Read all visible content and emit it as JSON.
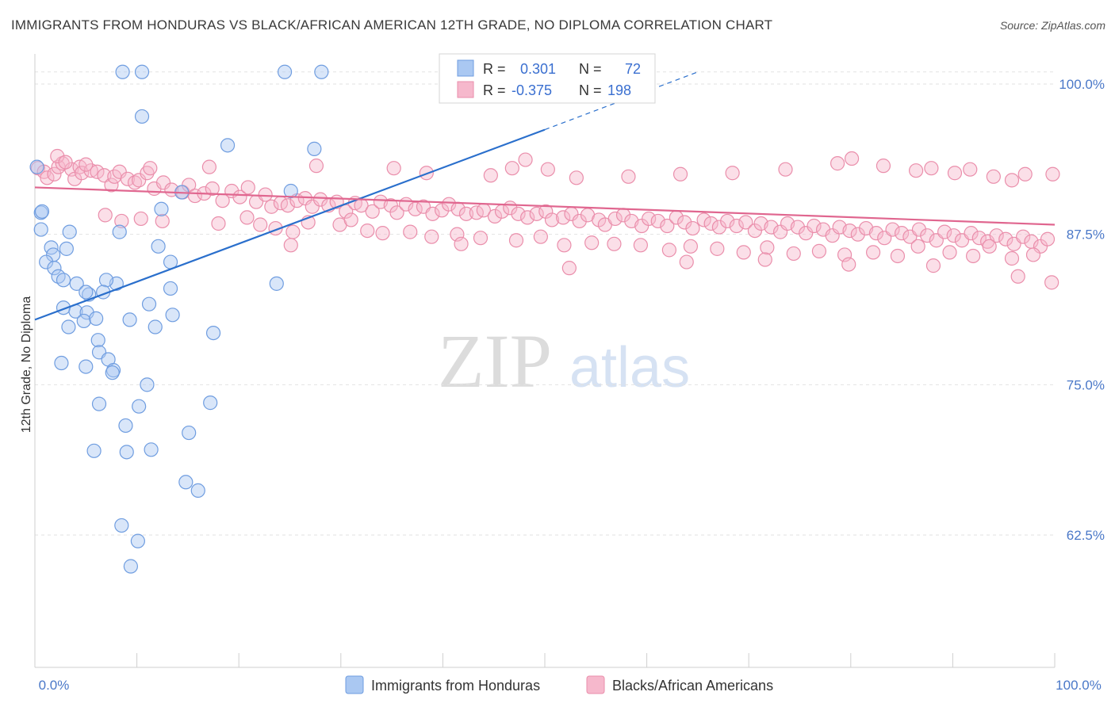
{
  "header": {
    "title": "IMMIGRANTS FROM HONDURAS VS BLACK/AFRICAN AMERICAN 12TH GRADE, NO DIPLOMA CORRELATION CHART",
    "source": "Source: ZipAtlas.com"
  },
  "watermark": {
    "zip": "ZIP",
    "atlas": "atlas"
  },
  "stats": [
    {
      "r_label": "R =",
      "r_value": "0.301",
      "n_label": "N =",
      "n_value": "72"
    },
    {
      "r_label": "R =",
      "r_value": "-0.375",
      "n_label": "N =",
      "n_value": "198"
    }
  ],
  "chart_data": {
    "type": "scatter",
    "ylabel": "12th Grade, No Diploma",
    "x_ticks": [
      "0.0%",
      "100.0%"
    ],
    "y_ticks": [
      "100.0%",
      "87.5%",
      "75.0%",
      "62.5%"
    ],
    "y_tick_values": [
      100,
      87.5,
      75,
      62.5
    ],
    "xlim": [
      0,
      100
    ],
    "ylim": [
      51.5,
      102.5
    ],
    "grid": true,
    "legend_position": "bottom",
    "colors": {
      "blue_fill": "#aac8f2",
      "blue_stroke": "#6f9de0",
      "blue_line": "#2a6fcc",
      "pink_fill": "#f6b8cc",
      "pink_stroke": "#ea8eab",
      "pink_line": "#e0668f",
      "tick": "#4a78c8"
    },
    "series": [
      {
        "name": "Immigrants from Honduras",
        "trend": {
          "x0": 0,
          "y0": 80.4,
          "x1": 50,
          "y1": 96.2,
          "dash_to_x": 65,
          "dash_to_y": 101
        },
        "points": [
          [
            8.6,
            101
          ],
          [
            10.5,
            101
          ],
          [
            24.5,
            101
          ],
          [
            28.1,
            101
          ],
          [
            10.5,
            97.3
          ],
          [
            0.2,
            93.1
          ],
          [
            18.9,
            94.9
          ],
          [
            27.4,
            94.6
          ],
          [
            0.6,
            89.3
          ],
          [
            0.7,
            89.4
          ],
          [
            0.6,
            87.9
          ],
          [
            3.4,
            87.7
          ],
          [
            8.3,
            87.7
          ],
          [
            12.4,
            89.6
          ],
          [
            14.4,
            91.0
          ],
          [
            25.1,
            91.1
          ],
          [
            1.6,
            86.4
          ],
          [
            1.8,
            85.8
          ],
          [
            3.1,
            86.3
          ],
          [
            1.1,
            85.2
          ],
          [
            1.9,
            84.7
          ],
          [
            13.3,
            85.2
          ],
          [
            12.1,
            86.5
          ],
          [
            2.3,
            84.0
          ],
          [
            2.8,
            83.7
          ],
          [
            4.1,
            83.4
          ],
          [
            8.0,
            83.4
          ],
          [
            7.0,
            83.7
          ],
          [
            13.3,
            83.0
          ],
          [
            23.7,
            83.4
          ],
          [
            5.3,
            82.5
          ],
          [
            5.0,
            82.7
          ],
          [
            6.7,
            82.7
          ],
          [
            2.8,
            81.4
          ],
          [
            4.0,
            81.1
          ],
          [
            5.1,
            81.0
          ],
          [
            11.2,
            81.7
          ],
          [
            4.8,
            80.3
          ],
          [
            6.0,
            80.5
          ],
          [
            9.3,
            80.4
          ],
          [
            11.8,
            79.8
          ],
          [
            13.5,
            80.8
          ],
          [
            17.5,
            79.3
          ],
          [
            3.3,
            79.8
          ],
          [
            6.2,
            78.7
          ],
          [
            6.3,
            77.7
          ],
          [
            7.2,
            77.1
          ],
          [
            2.6,
            76.8
          ],
          [
            5.0,
            76.5
          ],
          [
            7.7,
            76.2
          ],
          [
            7.6,
            76.0
          ],
          [
            11.0,
            75.0
          ],
          [
            6.3,
            73.4
          ],
          [
            10.2,
            73.2
          ],
          [
            17.2,
            73.5
          ],
          [
            8.9,
            71.6
          ],
          [
            15.1,
            71.0
          ],
          [
            5.8,
            69.5
          ],
          [
            9.0,
            69.4
          ],
          [
            11.4,
            69.6
          ],
          [
            14.8,
            66.9
          ],
          [
            16.0,
            66.2
          ],
          [
            8.5,
            63.3
          ],
          [
            10.1,
            62.0
          ],
          [
            9.4,
            59.9
          ]
        ]
      },
      {
        "name": "Blacks/African Americans",
        "trend": {
          "x0": 0,
          "y0": 91.4,
          "x1": 100,
          "y1": 88.3
        },
        "points": [
          [
            0.3,
            93.0
          ],
          [
            0.9,
            92.7
          ],
          [
            1.2,
            92.2
          ],
          [
            1.9,
            92.5
          ],
          [
            2.3,
            93.1
          ],
          [
            2.7,
            93.4
          ],
          [
            3.6,
            92.9
          ],
          [
            3.9,
            92.1
          ],
          [
            4.4,
            93.1
          ],
          [
            4.6,
            92.6
          ],
          [
            5.5,
            92.8
          ],
          [
            6.1,
            92.7
          ],
          [
            6.8,
            92.4
          ],
          [
            7.5,
            91.6
          ],
          [
            7.8,
            92.3
          ],
          [
            8.3,
            92.7
          ],
          [
            9.1,
            92.1
          ],
          [
            9.8,
            91.8
          ],
          [
            10.2,
            92.0
          ],
          [
            11.0,
            92.6
          ],
          [
            11.7,
            91.3
          ],
          [
            12.6,
            91.8
          ],
          [
            13.4,
            91.2
          ],
          [
            14.5,
            91.0
          ],
          [
            15.1,
            91.6
          ],
          [
            15.7,
            90.7
          ],
          [
            16.6,
            90.9
          ],
          [
            17.4,
            91.3
          ],
          [
            18.4,
            90.3
          ],
          [
            19.3,
            91.1
          ],
          [
            20.1,
            90.6
          ],
          [
            20.9,
            91.4
          ],
          [
            21.7,
            90.2
          ],
          [
            22.6,
            90.8
          ],
          [
            23.2,
            89.8
          ],
          [
            24.1,
            90.1
          ],
          [
            24.8,
            89.9
          ],
          [
            25.7,
            90.3
          ],
          [
            26.5,
            90.5
          ],
          [
            27.2,
            89.8
          ],
          [
            28.0,
            90.4
          ],
          [
            28.8,
            89.9
          ],
          [
            29.6,
            90.2
          ],
          [
            30.5,
            89.4
          ],
          [
            31.4,
            90.1
          ],
          [
            32.0,
            89.9
          ],
          [
            33.1,
            89.4
          ],
          [
            33.9,
            90.2
          ],
          [
            34.9,
            89.9
          ],
          [
            35.5,
            89.3
          ],
          [
            36.4,
            90.0
          ],
          [
            37.3,
            89.6
          ],
          [
            38.1,
            89.8
          ],
          [
            39.0,
            89.2
          ],
          [
            39.9,
            89.5
          ],
          [
            40.6,
            90.0
          ],
          [
            41.5,
            89.6
          ],
          [
            42.3,
            89.2
          ],
          [
            43.3,
            89.3
          ],
          [
            44.0,
            89.5
          ],
          [
            45.1,
            89.0
          ],
          [
            45.8,
            89.4
          ],
          [
            46.6,
            89.7
          ],
          [
            47.4,
            89.2
          ],
          [
            48.3,
            88.9
          ],
          [
            49.2,
            89.2
          ],
          [
            50.1,
            89.4
          ],
          [
            50.7,
            88.7
          ],
          [
            51.8,
            88.9
          ],
          [
            52.6,
            89.2
          ],
          [
            53.4,
            88.6
          ],
          [
            54.2,
            89.1
          ],
          [
            55.3,
            88.7
          ],
          [
            55.9,
            88.3
          ],
          [
            56.9,
            88.8
          ],
          [
            57.7,
            89.1
          ],
          [
            58.5,
            88.6
          ],
          [
            59.5,
            88.2
          ],
          [
            60.2,
            88.8
          ],
          [
            61.1,
            88.6
          ],
          [
            62.0,
            88.2
          ],
          [
            62.9,
            88.9
          ],
          [
            63.7,
            88.5
          ],
          [
            64.5,
            88.0
          ],
          [
            65.6,
            88.7
          ],
          [
            66.3,
            88.4
          ],
          [
            67.1,
            88.1
          ],
          [
            67.9,
            88.6
          ],
          [
            68.8,
            88.2
          ],
          [
            69.7,
            88.5
          ],
          [
            70.6,
            87.8
          ],
          [
            71.2,
            88.4
          ],
          [
            72.2,
            88.1
          ],
          [
            73.1,
            87.7
          ],
          [
            73.8,
            88.4
          ],
          [
            74.8,
            88.1
          ],
          [
            75.6,
            87.6
          ],
          [
            76.4,
            88.2
          ],
          [
            77.3,
            87.9
          ],
          [
            78.2,
            87.4
          ],
          [
            78.9,
            88.1
          ],
          [
            79.9,
            87.8
          ],
          [
            80.7,
            87.5
          ],
          [
            81.5,
            88.0
          ],
          [
            82.5,
            87.6
          ],
          [
            83.3,
            87.2
          ],
          [
            84.1,
            87.9
          ],
          [
            85.0,
            87.6
          ],
          [
            85.8,
            87.3
          ],
          [
            86.7,
            87.9
          ],
          [
            87.5,
            87.4
          ],
          [
            88.4,
            87.0
          ],
          [
            89.2,
            87.7
          ],
          [
            90.1,
            87.4
          ],
          [
            90.9,
            87.0
          ],
          [
            91.8,
            87.6
          ],
          [
            92.6,
            87.2
          ],
          [
            93.4,
            86.9
          ],
          [
            94.3,
            87.4
          ],
          [
            95.2,
            87.1
          ],
          [
            96.0,
            86.7
          ],
          [
            96.9,
            87.3
          ],
          [
            97.7,
            86.9
          ],
          [
            98.6,
            86.5
          ],
          [
            99.3,
            87.1
          ],
          [
            2.2,
            94.0
          ],
          [
            3.0,
            93.5
          ],
          [
            5.0,
            93.3
          ],
          [
            11.3,
            93.0
          ],
          [
            17.1,
            93.1
          ],
          [
            27.6,
            93.2
          ],
          [
            35.2,
            93.0
          ],
          [
            38.4,
            92.6
          ],
          [
            44.7,
            92.4
          ],
          [
            46.8,
            93.0
          ],
          [
            48.1,
            93.7
          ],
          [
            50.3,
            92.9
          ],
          [
            53.1,
            92.2
          ],
          [
            58.2,
            92.3
          ],
          [
            63.3,
            92.5
          ],
          [
            68.4,
            92.6
          ],
          [
            73.6,
            92.9
          ],
          [
            78.7,
            93.4
          ],
          [
            80.1,
            93.8
          ],
          [
            83.2,
            93.2
          ],
          [
            86.4,
            92.8
          ],
          [
            87.9,
            93.0
          ],
          [
            90.2,
            92.6
          ],
          [
            91.7,
            92.9
          ],
          [
            94.0,
            92.3
          ],
          [
            95.8,
            92.0
          ],
          [
            97.1,
            92.5
          ],
          [
            99.8,
            92.5
          ],
          [
            6.9,
            89.1
          ],
          [
            8.5,
            88.6
          ],
          [
            10.4,
            88.8
          ],
          [
            12.5,
            88.6
          ],
          [
            18.0,
            88.4
          ],
          [
            22.1,
            88.3
          ],
          [
            23.6,
            88.0
          ],
          [
            25.3,
            87.7
          ],
          [
            26.8,
            88.5
          ],
          [
            29.9,
            88.3
          ],
          [
            32.6,
            87.8
          ],
          [
            34.1,
            87.6
          ],
          [
            36.8,
            87.7
          ],
          [
            38.9,
            87.3
          ],
          [
            41.4,
            87.5
          ],
          [
            43.7,
            87.2
          ],
          [
            47.2,
            87.0
          ],
          [
            49.6,
            87.3
          ],
          [
            51.9,
            86.6
          ],
          [
            54.6,
            86.8
          ],
          [
            56.8,
            86.7
          ],
          [
            59.4,
            86.6
          ],
          [
            62.2,
            86.2
          ],
          [
            64.3,
            86.5
          ],
          [
            66.9,
            86.3
          ],
          [
            69.5,
            86.0
          ],
          [
            71.8,
            86.4
          ],
          [
            74.4,
            85.9
          ],
          [
            76.9,
            86.1
          ],
          [
            79.4,
            85.8
          ],
          [
            82.2,
            86.0
          ],
          [
            84.6,
            85.7
          ],
          [
            86.6,
            86.5
          ],
          [
            89.7,
            86.0
          ],
          [
            92.0,
            85.7
          ],
          [
            93.6,
            86.5
          ],
          [
            95.8,
            85.5
          ],
          [
            97.9,
            85.8
          ],
          [
            25.1,
            86.6
          ],
          [
            41.8,
            86.7
          ],
          [
            52.4,
            84.7
          ],
          [
            63.9,
            85.2
          ],
          [
            71.6,
            85.4
          ],
          [
            79.8,
            85.0
          ],
          [
            88.1,
            84.9
          ],
          [
            96.4,
            84.0
          ],
          [
            99.7,
            83.5
          ],
          [
            20.8,
            88.9
          ],
          [
            31.0,
            88.7
          ]
        ]
      }
    ]
  },
  "legend": {
    "items": [
      "Immigrants from Honduras",
      "Blacks/African Americans"
    ]
  }
}
